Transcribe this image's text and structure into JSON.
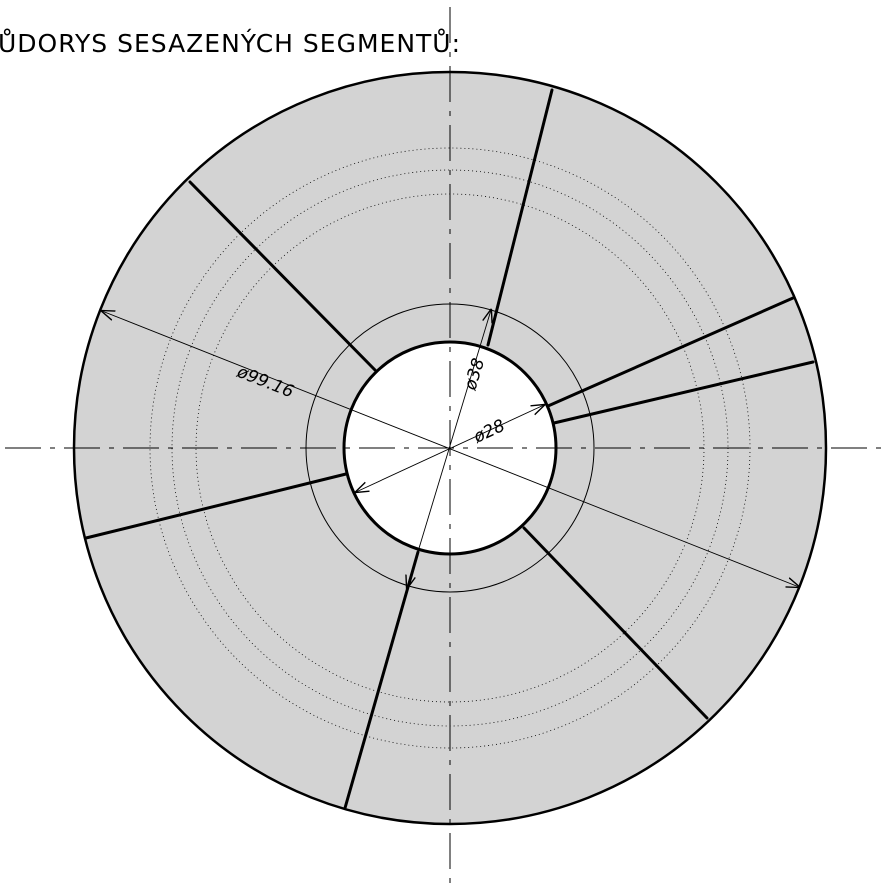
{
  "title": "ŮDORYS SESAZENÝCH SEGMENTŮ:",
  "dimensions": {
    "outer_diameter": "ø99.16",
    "diameter_38": "ø38",
    "diameter_28": "ø28"
  },
  "colors": {
    "segment_fill": "#d3d3d3",
    "line": "#000000",
    "background": "#ffffff"
  }
}
